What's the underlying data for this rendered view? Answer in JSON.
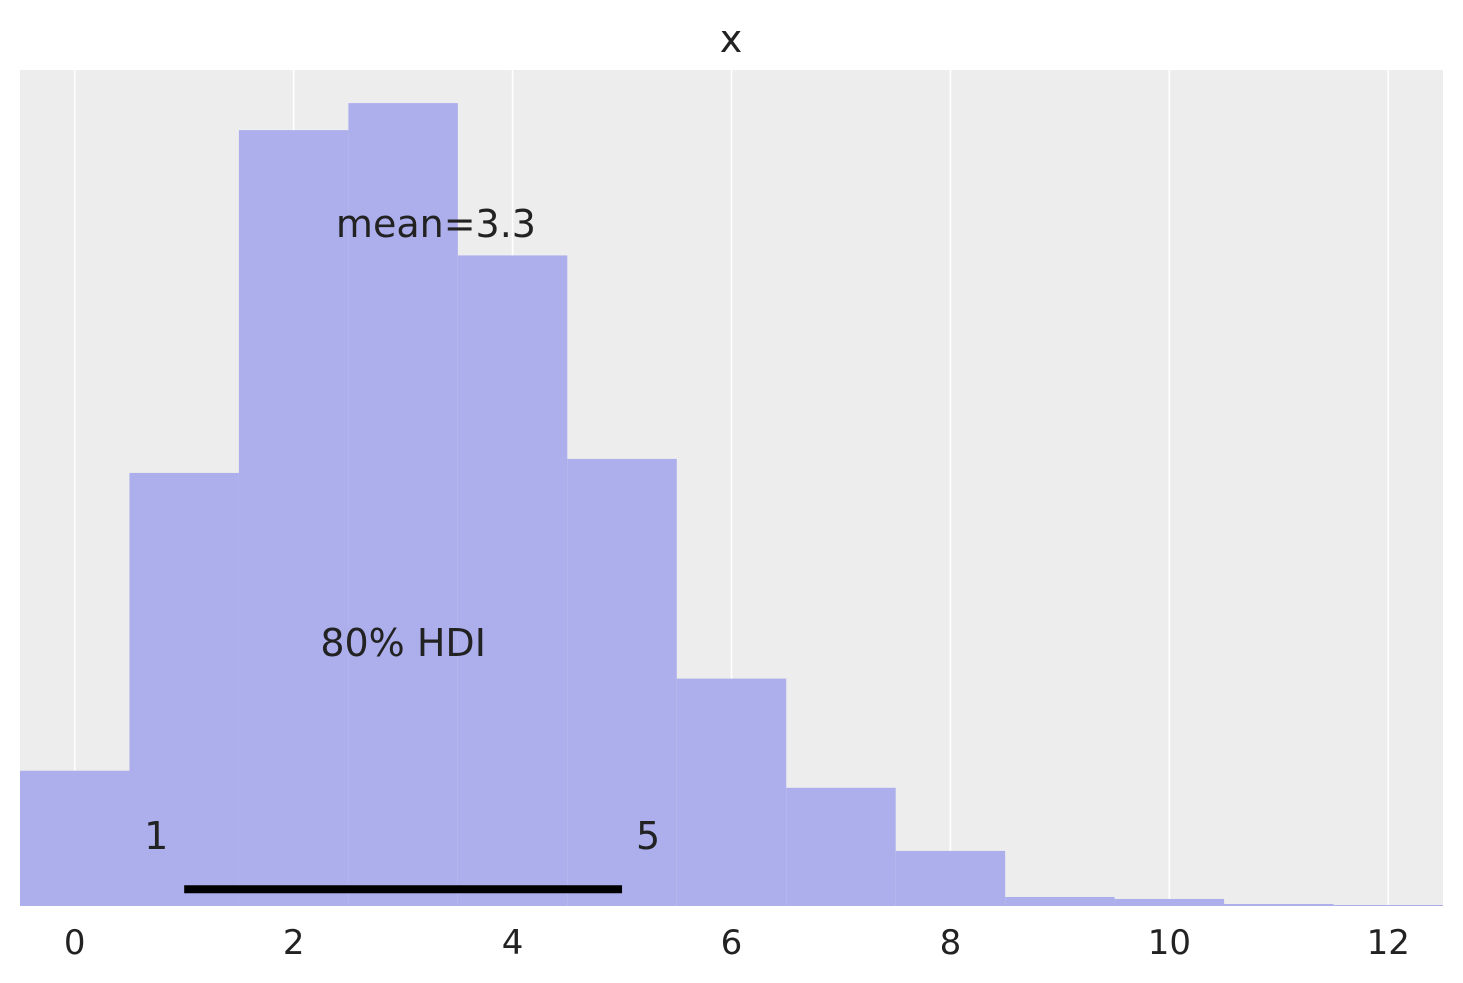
{
  "chart_data": {
    "type": "bar",
    "title": "x",
    "xlabel": "",
    "ylabel": "",
    "xlim": [
      -0.5,
      12.5
    ],
    "ylim": [
      0,
      1
    ],
    "grid": "vertical",
    "xticks": [
      0,
      2,
      4,
      6,
      8,
      10,
      12
    ],
    "xtick_labels": [
      "0",
      "2",
      "4",
      "6",
      "8",
      "10",
      "12"
    ],
    "bins": [
      {
        "start": -0.5,
        "end": 0.5,
        "value": 0.1618
      },
      {
        "start": 0.5,
        "end": 1.5,
        "value": 0.518
      },
      {
        "start": 1.5,
        "end": 2.5,
        "value": 0.9281
      },
      {
        "start": 2.5,
        "end": 3.5,
        "value": 0.9604
      },
      {
        "start": 3.5,
        "end": 4.5,
        "value": 0.7782
      },
      {
        "start": 4.5,
        "end": 5.5,
        "value": 0.5348
      },
      {
        "start": 5.5,
        "end": 6.5,
        "value": 0.272
      },
      {
        "start": 6.5,
        "end": 7.5,
        "value": 0.1414
      },
      {
        "start": 7.5,
        "end": 8.5,
        "value": 0.0659
      },
      {
        "start": 8.5,
        "end": 9.5,
        "value": 0.0108
      },
      {
        "start": 9.5,
        "end": 10.5,
        "value": 0.0084
      },
      {
        "start": 10.5,
        "end": 11.5,
        "value": 0.0024
      },
      {
        "start": 11.5,
        "end": 12.5,
        "value": 0.0012
      }
    ],
    "mean": 3.3,
    "mean_label": "mean=3.3",
    "hdi": {
      "prob_label": "80% HDI",
      "low": 1,
      "high": 5,
      "low_label": "1",
      "high_label": "5"
    },
    "colors": {
      "bars": "#aaacec",
      "panel": "#ededed",
      "grid": "#ffffff",
      "hdi_line": "#000000",
      "text": "#222222"
    }
  }
}
